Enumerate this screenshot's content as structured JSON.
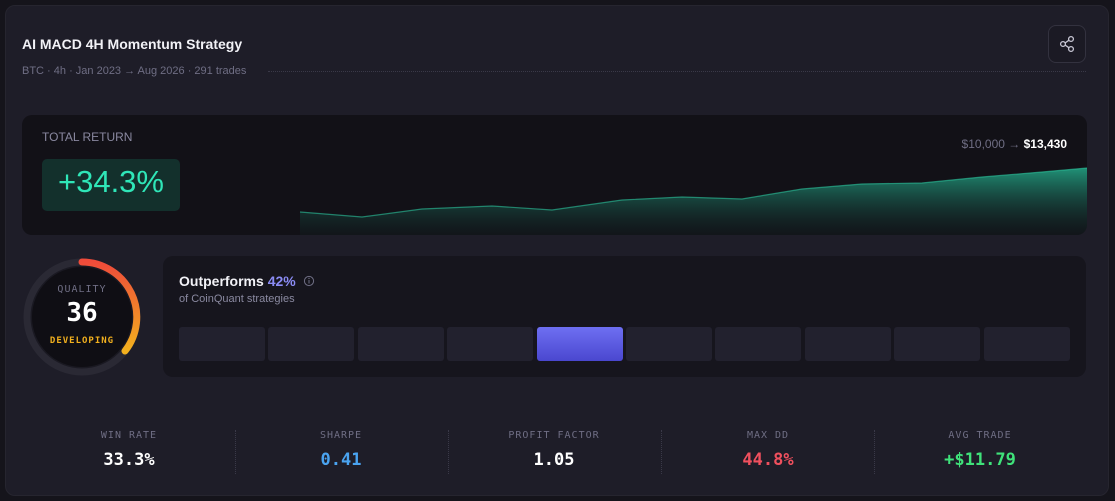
{
  "header": {
    "title": "AI MACD 4H Momentum Strategy",
    "subtitle": "BTC · 4h · Jan 2023 → Aug 2026 · 291 trades"
  },
  "total_return": {
    "label": "TOTAL RETURN",
    "value": "+34.3%",
    "start": "$10,000 →",
    "end": "$13,430"
  },
  "quality": {
    "label": "QUALITY",
    "score": "36",
    "rating": "DEVELOPING"
  },
  "percentile": {
    "title": "Outperforms",
    "value": "42%",
    "subtitle": "of CoinQuant strategies"
  },
  "stats": [
    {
      "label": "WIN RATE",
      "value": "33.3%"
    },
    {
      "label": "SHARPE",
      "value": "0.41"
    },
    {
      "label": "PROFIT FACTOR",
      "value": "1.05"
    },
    {
      "label": "MAX DD",
      "value": "44.8%"
    },
    {
      "label": "AVG TRADE",
      "value": "+$11.79"
    }
  ]
}
